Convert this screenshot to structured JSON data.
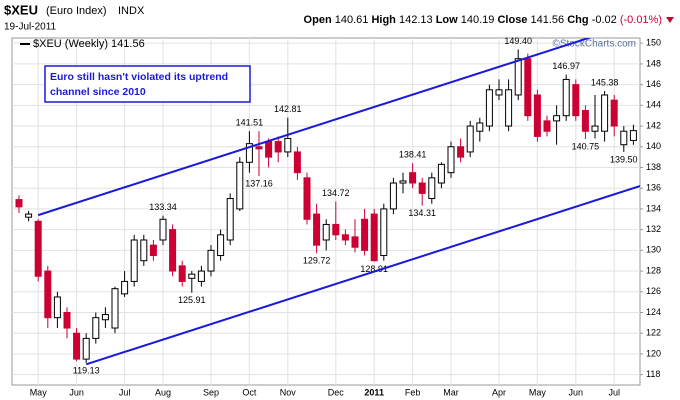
{
  "chart_data": {
    "type": "candlestick",
    "title": "$XEU",
    "subtitle": "(Euro Index)",
    "exchange": "INDX",
    "date": "19-Jul-2011",
    "quote_labels": {
      "open": "Open",
      "high": "High",
      "low": "Low",
      "close": "Close",
      "change": "Chg"
    },
    "change": -0.02,
    "change_pct": {
      "value": -0.01,
      "label": "(-0.01%)"
    },
    "copyright": "©StockCharts.com",
    "annotation": [
      "Euro still hasn't violated its uptrend",
      "channel since 2010"
    ],
    "categories": [
      null,
      null,
      "May",
      null,
      null,
      null,
      "Jun",
      null,
      null,
      null,
      null,
      "Jul",
      null,
      null,
      null,
      "Aug",
      null,
      null,
      null,
      null,
      "Sep",
      null,
      null,
      null,
      "Oct",
      null,
      null,
      null,
      "Nov",
      null,
      null,
      null,
      null,
      "Dec",
      null,
      null,
      null,
      "2011",
      null,
      null,
      null,
      "Feb",
      null,
      null,
      null,
      "Mar",
      null,
      null,
      null,
      null,
      "Apr",
      null,
      null,
      null,
      "May",
      null,
      null,
      null,
      "Jun",
      null,
      null,
      null,
      "Jul",
      null,
      null
    ],
    "series": [
      {
        "name": "$XEU (Weekly)",
        "up_color": "#000000",
        "down_color": "#cc0033",
        "open": [
          134.9,
          133.2,
          132.8,
          128,
          123.5,
          124,
          122,
          119.5,
          121.5,
          123.3,
          122.5,
          125.8,
          127,
          129,
          130.5,
          131,
          132,
          128.5,
          127.3,
          127,
          128,
          129.5,
          131,
          134,
          138.5,
          140,
          140.5,
          140.5,
          139.5,
          139.5,
          137,
          133.5,
          131,
          132.5,
          131.5,
          131.3,
          133,
          133.5,
          129.5,
          134,
          136.5,
          137.5,
          136.5,
          135,
          136.5,
          137.5,
          140,
          139.5,
          141.5,
          142,
          145,
          142,
          145,
          148.5,
          145,
          142.5,
          142.5,
          143,
          146,
          143.5,
          141.5,
          141.5,
          144.5,
          140.2,
          140.61
        ],
        "high": [
          135.3,
          133.8,
          133,
          128.5,
          126,
          124.5,
          122.5,
          122,
          124,
          124.5,
          126.5,
          128,
          131.5,
          131.5,
          131,
          133.34,
          132.5,
          129,
          128,
          128.5,
          130.5,
          132,
          135.5,
          139,
          141.51,
          141.5,
          140.8,
          141,
          142.81,
          140,
          137.5,
          134.5,
          133,
          134.72,
          132,
          133,
          134,
          134,
          134.5,
          137,
          137.5,
          138.41,
          137,
          137.5,
          138.5,
          140.5,
          140.8,
          142.5,
          142.8,
          146,
          146.5,
          146.5,
          149.4,
          149,
          145.5,
          143,
          144,
          146.97,
          146.5,
          144,
          145,
          145.38,
          145,
          142,
          142.13
        ],
        "low": [
          133.6,
          132.8,
          127,
          122.5,
          122.5,
          121.5,
          119.3,
          119.13,
          121,
          122.5,
          122,
          125.5,
          126.5,
          128.5,
          129,
          130.5,
          127.5,
          126.5,
          125.91,
          126.5,
          127.5,
          129,
          130.5,
          133.8,
          137.5,
          137.16,
          138,
          138.5,
          139,
          136.8,
          132.5,
          129.72,
          130,
          131,
          130.5,
          129.8,
          129.5,
          128.91,
          129,
          133.5,
          135.5,
          136,
          134.31,
          134.5,
          136,
          137,
          138.5,
          139,
          140.5,
          141.5,
          144.5,
          141.5,
          144.5,
          142.5,
          140.5,
          141,
          140.2,
          142.5,
          142.5,
          140.75,
          140.8,
          140.5,
          141,
          139.5,
          140.19
        ],
        "close": [
          134.2,
          133.5,
          127.5,
          123.5,
          125.5,
          122.5,
          119.5,
          121.5,
          123.5,
          123.8,
          126.3,
          127,
          131,
          131,
          129.5,
          133,
          128,
          127,
          127.7,
          128,
          130,
          131.5,
          135,
          138.5,
          140.3,
          139.8,
          139,
          139.5,
          140.8,
          137.5,
          133,
          130.5,
          132.5,
          131.5,
          131,
          130.3,
          130,
          129,
          134,
          136.5,
          136.7,
          136.5,
          135.5,
          137,
          138.3,
          140,
          139,
          142,
          142.3,
          145.5,
          145.5,
          145.5,
          148.5,
          143,
          141,
          141.5,
          143,
          146.5,
          143,
          141.5,
          142,
          145,
          142,
          141.5,
          141.56
        ],
        "high_labels": [
          null,
          null,
          null,
          null,
          null,
          null,
          null,
          null,
          null,
          null,
          null,
          null,
          null,
          null,
          null,
          "133.34",
          null,
          null,
          null,
          null,
          null,
          null,
          null,
          null,
          "141.51",
          null,
          null,
          null,
          "142.81",
          null,
          null,
          null,
          null,
          "134.72",
          null,
          null,
          null,
          null,
          null,
          null,
          null,
          "138.41",
          null,
          null,
          null,
          null,
          null,
          null,
          null,
          null,
          null,
          null,
          "149.40",
          null,
          null,
          null,
          null,
          "146.97",
          null,
          null,
          null,
          "145.38",
          null,
          null,
          null
        ],
        "low_labels": [
          null,
          null,
          null,
          null,
          null,
          null,
          null,
          "119.13",
          null,
          null,
          null,
          null,
          null,
          null,
          null,
          null,
          null,
          null,
          "125.91",
          null,
          null,
          null,
          null,
          null,
          null,
          "137.16",
          null,
          null,
          null,
          null,
          null,
          "129.72",
          null,
          null,
          null,
          null,
          null,
          "128.91",
          null,
          null,
          null,
          null,
          "134.31",
          null,
          null,
          null,
          null,
          null,
          null,
          null,
          null,
          null,
          null,
          null,
          null,
          null,
          null,
          null,
          null,
          "140.75",
          null,
          null,
          null,
          "139.50",
          null
        ]
      }
    ],
    "trendlines": [
      {
        "color": "#1a1adb",
        "x": [
          2,
          61
        ],
        "y": [
          133.4,
          151.0
        ]
      },
      {
        "color": "#1a1adb",
        "x": [
          7,
          64
        ],
        "y": [
          119.0,
          136.0
        ]
      }
    ],
    "ylim": [
      117,
      150.5
    ],
    "yticks": [
      118,
      120,
      122,
      124,
      126,
      128,
      130,
      132,
      134,
      136,
      138,
      140,
      142,
      144,
      146,
      148,
      150
    ],
    "grid": true
  }
}
